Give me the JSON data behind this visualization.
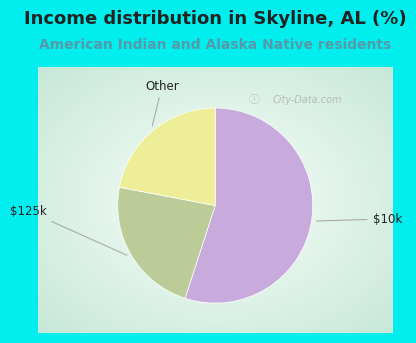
{
  "title": "Income distribution in Skyline, AL (%)",
  "subtitle": "American Indian and Alaska Native residents",
  "slices": [
    {
      "label": "$10k",
      "value": 55,
      "color": "#C8AADC"
    },
    {
      "label": "$125k",
      "value": 23,
      "color": "#BBCC99"
    },
    {
      "label": "Other",
      "value": 22,
      "color": "#EEEE99"
    }
  ],
  "title_fontsize": 13,
  "subtitle_fontsize": 10,
  "title_color": "#222222",
  "subtitle_color": "#5599AA",
  "bg_top_color": "#00EEEE",
  "label_color": "#222222",
  "watermark": "City-Data.com",
  "startangle": 90,
  "chart_bg_left": "#C8E8D8",
  "chart_bg_right": "#F0F8F8"
}
